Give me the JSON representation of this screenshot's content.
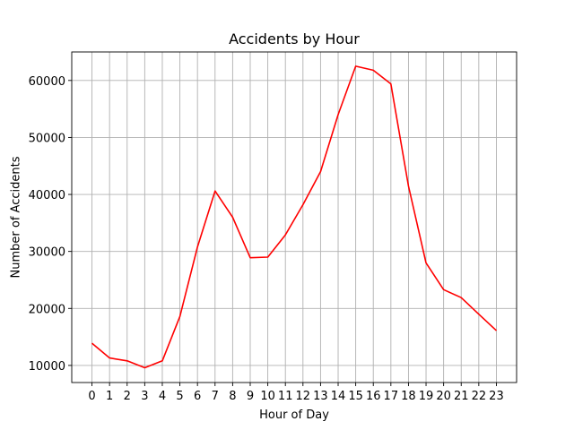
{
  "chart_data": {
    "type": "line",
    "title": "Accidents by Hour",
    "xlabel": "Hour of Day",
    "ylabel": "Number of Accidents",
    "x": [
      0,
      1,
      2,
      3,
      4,
      5,
      6,
      7,
      8,
      9,
      10,
      11,
      12,
      13,
      14,
      15,
      16,
      17,
      18,
      19,
      20,
      21,
      22,
      23
    ],
    "x_tick_labels": [
      "0",
      "1",
      "2",
      "3",
      "4",
      "5",
      "6",
      "7",
      "8",
      "9",
      "10",
      "11",
      "12",
      "13",
      "14",
      "15",
      "16",
      "17",
      "18",
      "19",
      "20",
      "21",
      "22",
      "23"
    ],
    "series": [
      {
        "values": [
          13900,
          11300,
          10800,
          9600,
          10800,
          18600,
          30800,
          40600,
          36000,
          28900,
          29000,
          32900,
          38200,
          44000,
          54000,
          62500,
          61800,
          59400,
          41500,
          28000,
          23300,
          21900,
          19000,
          16100
        ],
        "color": "#ff0000"
      }
    ],
    "y_ticks": [
      10000,
      20000,
      30000,
      40000,
      50000,
      60000
    ],
    "y_tick_labels": [
      "10000",
      "20000",
      "30000",
      "40000",
      "50000",
      "60000"
    ],
    "xlim": [
      -1.15,
      24.15
    ],
    "ylim": [
      7000,
      65000
    ],
    "grid": true,
    "grid_color": "#b0b0b0"
  }
}
